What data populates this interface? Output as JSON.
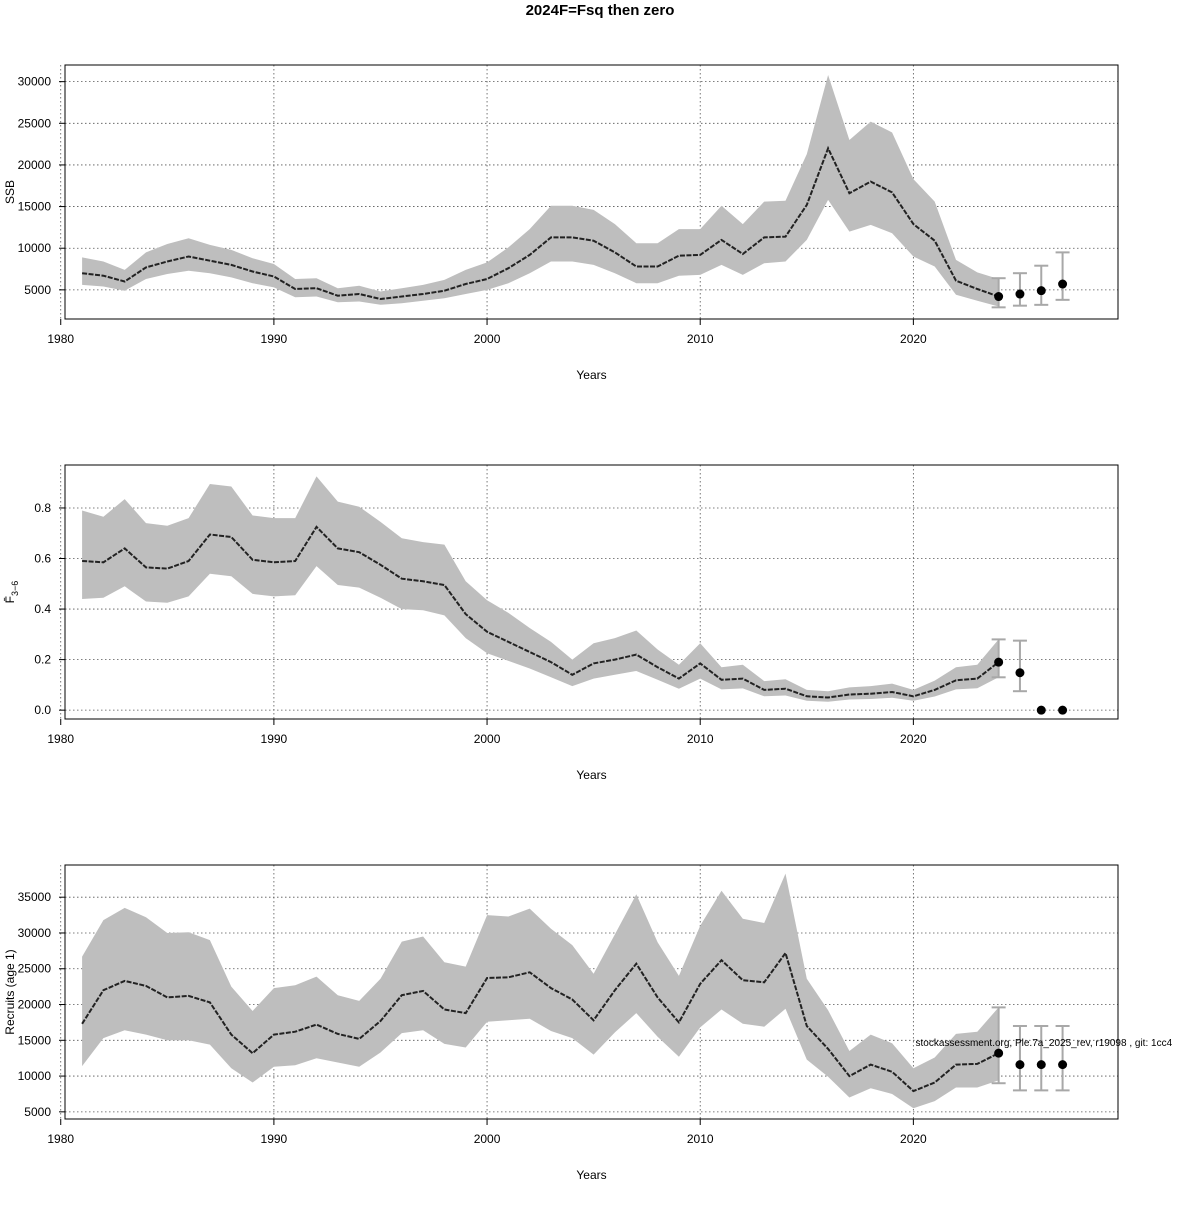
{
  "title": "2024F=Fsq then zero",
  "footnote": "stockassessment.org, Ple.7a_2025_rev, r19098 , git: 1cc4",
  "colors": {
    "band": "#bebebe",
    "line": "#222222",
    "grid": "#555555",
    "errorbar": "#a8a8a8",
    "point": "#000000"
  },
  "chart_data": [
    {
      "type": "line",
      "ylabel": "SSB",
      "xlabel": "Years",
      "xlim": [
        1980.2,
        2029.6
      ],
      "ylim": [
        1500,
        32000
      ],
      "xticks": [
        1980,
        1990,
        2000,
        2010,
        2020
      ],
      "yticks": [
        5000,
        10000,
        15000,
        20000,
        25000,
        30000
      ],
      "grid": true,
      "series": [
        {
          "x": [
            1981,
            1982,
            1983,
            1984,
            1985,
            1986,
            1987,
            1988,
            1989,
            1990,
            1991,
            1992,
            1993,
            1994,
            1995,
            1996,
            1997,
            1998,
            1999,
            2000,
            2001,
            2002,
            2003,
            2004,
            2005,
            2006,
            2007,
            2008,
            2009,
            2010,
            2011,
            2012,
            2013,
            2014,
            2015,
            2016,
            2017,
            2018,
            2019,
            2020,
            2021,
            2022,
            2023,
            2024
          ],
          "estimate": [
            7000,
            6700,
            6000,
            7700,
            8400,
            9000,
            8500,
            8000,
            7200,
            6600,
            5100,
            5200,
            4300,
            4500,
            3900,
            4200,
            4500,
            4900,
            5700,
            6300,
            7600,
            9200,
            11300,
            11300,
            10900,
            9500,
            7800,
            7800,
            9100,
            9200,
            11000,
            9300,
            11300,
            11400,
            15200,
            22000,
            16600,
            18000,
            16700,
            12900,
            10900,
            6100,
            5100,
            4200
          ],
          "lower": [
            5600,
            5400,
            4900,
            6300,
            6900,
            7300,
            7000,
            6500,
            5800,
            5300,
            4100,
            4200,
            3500,
            3600,
            3200,
            3400,
            3700,
            4000,
            4500,
            5000,
            5800,
            7000,
            8400,
            8400,
            8000,
            7000,
            5800,
            5800,
            6700,
            6800,
            8000,
            6800,
            8200,
            8400,
            11000,
            15800,
            12000,
            12800,
            11800,
            9000,
            7800,
            4400,
            3700,
            3000
          ],
          "upper": [
            8900,
            8400,
            7400,
            9500,
            10500,
            11200,
            10400,
            9800,
            8800,
            8100,
            6300,
            6400,
            5200,
            5500,
            4800,
            5200,
            5600,
            6200,
            7400,
            8300,
            10100,
            12300,
            15100,
            15100,
            14600,
            12900,
            10600,
            10600,
            12300,
            12300,
            15100,
            12900,
            15600,
            15700,
            21300,
            30800,
            23000,
            25200,
            23900,
            18300,
            15600,
            8600,
            7100,
            6300
          ]
        }
      ],
      "forecast": {
        "x": [
          2024,
          2025,
          2026,
          2027
        ],
        "median": [
          4200,
          4500,
          4900,
          5700
        ],
        "low": [
          2900,
          3100,
          3200,
          3800
        ],
        "high": [
          6400,
          7000,
          7900,
          9500
        ]
      }
    },
    {
      "type": "line",
      "ylabel": "F̄",
      "ylabel_sub": "3−6",
      "xlabel": "Years",
      "xlim": [
        1980.2,
        2029.6
      ],
      "ylim": [
        -0.035,
        0.97
      ],
      "xticks": [
        1980,
        1990,
        2000,
        2010,
        2020
      ],
      "yticks": [
        0.0,
        0.2,
        0.4,
        0.6,
        0.8
      ],
      "ytick_labels": [
        "0.0",
        "0.2",
        "0.4",
        "0.6",
        "0.8"
      ],
      "grid": true,
      "series": [
        {
          "x": [
            1981,
            1982,
            1983,
            1984,
            1985,
            1986,
            1987,
            1988,
            1989,
            1990,
            1991,
            1992,
            1993,
            1994,
            1995,
            1996,
            1997,
            1998,
            1999,
            2000,
            2001,
            2002,
            2003,
            2004,
            2005,
            2006,
            2007,
            2008,
            2009,
            2010,
            2011,
            2012,
            2013,
            2014,
            2015,
            2016,
            2017,
            2018,
            2019,
            2020,
            2021,
            2022,
            2023,
            2024
          ],
          "estimate": [
            0.59,
            0.585,
            0.64,
            0.565,
            0.56,
            0.59,
            0.695,
            0.685,
            0.595,
            0.585,
            0.59,
            0.725,
            0.64,
            0.625,
            0.575,
            0.52,
            0.51,
            0.495,
            0.38,
            0.31,
            0.27,
            0.23,
            0.19,
            0.14,
            0.185,
            0.2,
            0.22,
            0.17,
            0.125,
            0.185,
            0.12,
            0.125,
            0.08,
            0.085,
            0.055,
            0.05,
            0.062,
            0.065,
            0.072,
            0.055,
            0.08,
            0.118,
            0.125,
            0.19
          ],
          "lower": [
            0.44,
            0.445,
            0.49,
            0.43,
            0.425,
            0.45,
            0.54,
            0.53,
            0.46,
            0.45,
            0.455,
            0.57,
            0.495,
            0.485,
            0.445,
            0.4,
            0.395,
            0.375,
            0.285,
            0.225,
            0.195,
            0.165,
            0.13,
            0.095,
            0.125,
            0.14,
            0.155,
            0.12,
            0.085,
            0.125,
            0.082,
            0.086,
            0.055,
            0.058,
            0.037,
            0.033,
            0.042,
            0.044,
            0.049,
            0.037,
            0.054,
            0.082,
            0.087,
            0.13
          ],
          "upper": [
            0.79,
            0.765,
            0.835,
            0.74,
            0.73,
            0.76,
            0.895,
            0.885,
            0.77,
            0.76,
            0.76,
            0.925,
            0.825,
            0.805,
            0.745,
            0.68,
            0.665,
            0.655,
            0.51,
            0.435,
            0.385,
            0.325,
            0.27,
            0.2,
            0.265,
            0.285,
            0.315,
            0.24,
            0.18,
            0.265,
            0.17,
            0.18,
            0.115,
            0.122,
            0.08,
            0.075,
            0.09,
            0.095,
            0.105,
            0.08,
            0.117,
            0.17,
            0.18,
            0.28
          ]
        }
      ],
      "forecast": {
        "x": [
          2024,
          2025,
          2026,
          2027
        ],
        "median": [
          0.19,
          0.148,
          0.0,
          0.0
        ],
        "low": [
          0.13,
          0.075,
          0.0,
          0.0
        ],
        "high": [
          0.28,
          0.275,
          0.0,
          0.0
        ]
      }
    },
    {
      "type": "line",
      "ylabel": "Recruits (age 1)",
      "xlabel": "Years",
      "xlim": [
        1980.2,
        2029.6
      ],
      "ylim": [
        4000,
        39500
      ],
      "xticks": [
        1980,
        1990,
        2000,
        2010,
        2020
      ],
      "yticks": [
        5000,
        10000,
        15000,
        20000,
        25000,
        30000,
        35000
      ],
      "grid": true,
      "series": [
        {
          "x": [
            1981,
            1982,
            1983,
            1984,
            1985,
            1986,
            1987,
            1988,
            1989,
            1990,
            1991,
            1992,
            1993,
            1994,
            1995,
            1996,
            1997,
            1998,
            1999,
            2000,
            2001,
            2002,
            2003,
            2004,
            2005,
            2006,
            2007,
            2008,
            2009,
            2010,
            2011,
            2012,
            2013,
            2014,
            2015,
            2016,
            2017,
            2018,
            2019,
            2020,
            2021,
            2022,
            2023,
            2024
          ],
          "estimate": [
            17300,
            22000,
            23300,
            22600,
            21000,
            21200,
            20300,
            15800,
            13200,
            15800,
            16200,
            17200,
            15900,
            15200,
            17700,
            21300,
            21900,
            19300,
            18800,
            23700,
            23800,
            24500,
            22300,
            20700,
            17800,
            22000,
            25700,
            21000,
            17500,
            22900,
            26200,
            23400,
            23100,
            27200,
            17000,
            13800,
            10000,
            11600,
            10600,
            7900,
            9100,
            11600,
            11700,
            13200
          ],
          "lower": [
            11400,
            15300,
            16400,
            15800,
            15000,
            15000,
            14400,
            11100,
            9100,
            11300,
            11500,
            12500,
            11900,
            11300,
            13300,
            16000,
            16400,
            14500,
            14000,
            17600,
            17800,
            18000,
            16300,
            15300,
            13000,
            16100,
            18800,
            15500,
            12700,
            16800,
            19300,
            17300,
            16900,
            19400,
            12300,
            9900,
            7000,
            8300,
            7500,
            5500,
            6500,
            8400,
            8400,
            9400
          ],
          "upper": [
            26700,
            31800,
            33500,
            32200,
            30000,
            30100,
            29000,
            22500,
            19100,
            22300,
            22700,
            23900,
            21300,
            20500,
            23600,
            28800,
            29500,
            25900,
            25300,
            32500,
            32300,
            33400,
            30600,
            28300,
            24300,
            29800,
            35400,
            28700,
            24000,
            31000,
            35900,
            32000,
            31400,
            38300,
            23600,
            19200,
            13500,
            15800,
            14600,
            11100,
            12600,
            15900,
            16200,
            19600
          ]
        }
      ],
      "forecast": {
        "x": [
          2024,
          2025,
          2026,
          2027
        ],
        "median": [
          13200,
          11600,
          11600,
          11600
        ],
        "low": [
          9000,
          8000,
          8000,
          8000
        ],
        "high": [
          19600,
          17000,
          17000,
          17000
        ]
      }
    }
  ]
}
